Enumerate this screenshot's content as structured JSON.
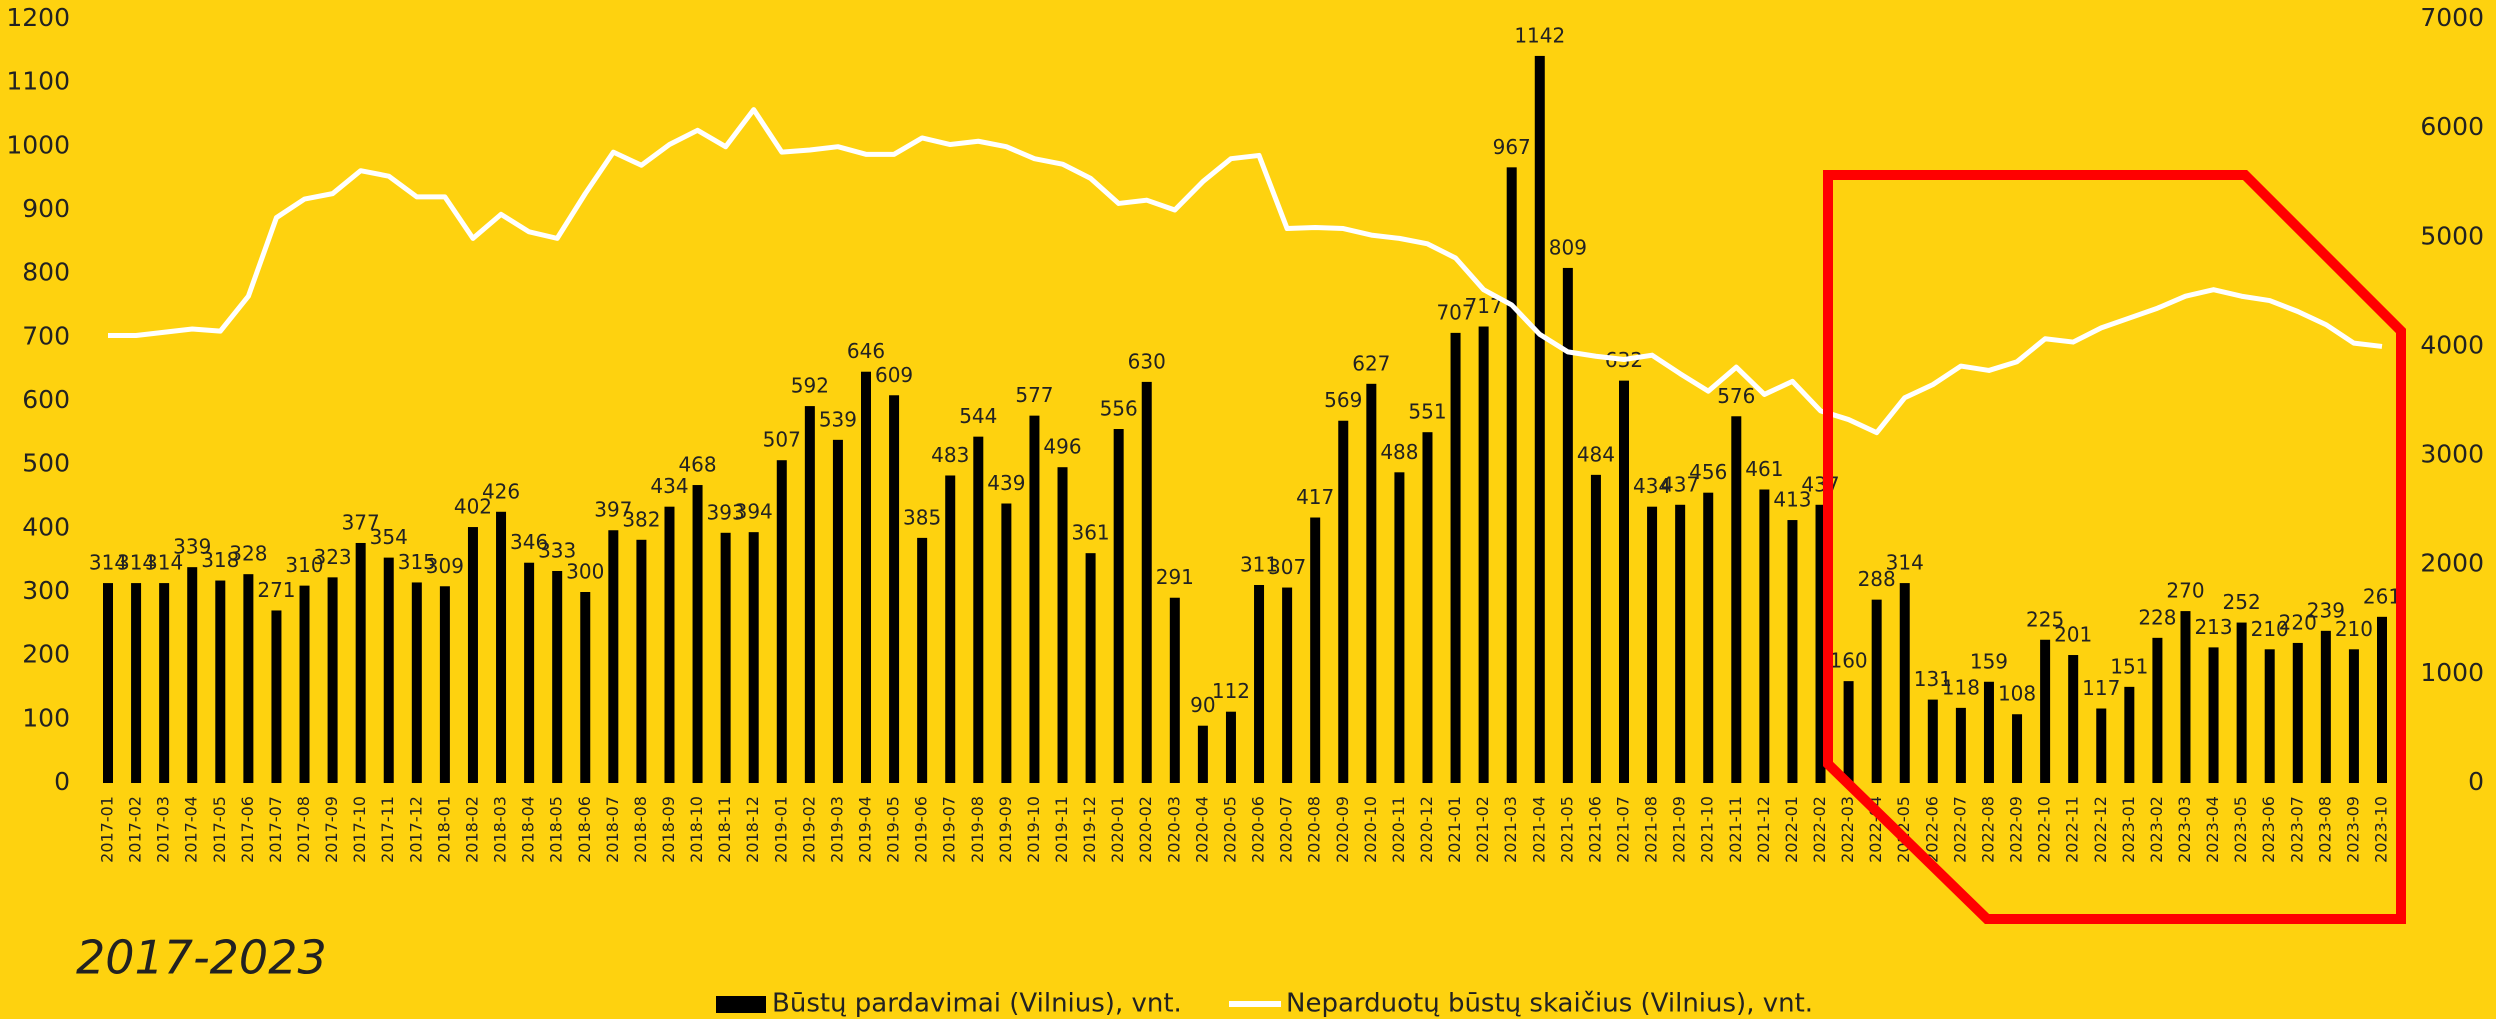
{
  "chart_data": {
    "type": "bar",
    "title": "2017-2023",
    "categories": [
      "2017-01",
      "2017-02",
      "2017-03",
      "2017-04",
      "2017-05",
      "2017-06",
      "2017-07",
      "2017-08",
      "2017-09",
      "2017-10",
      "2017-11",
      "2017-12",
      "2018-01",
      "2018-02",
      "2018-03",
      "2018-04",
      "2018-05",
      "2018-06",
      "2018-07",
      "2018-08",
      "2018-09",
      "2018-10",
      "2018-11",
      "2018-12",
      "2019-01",
      "2019-02",
      "2019-03",
      "2019-04",
      "2019-05",
      "2019-06",
      "2019-07",
      "2019-08",
      "2019-09",
      "2019-10",
      "2019-11",
      "2019-12",
      "2020-01",
      "2020-02",
      "2020-03",
      "2020-04",
      "2020-05",
      "2020-06",
      "2020-07",
      "2020-08",
      "2020-09",
      "2020-10",
      "2020-11",
      "2020-12",
      "2021-01",
      "2021-02",
      "2021-03",
      "2021-04",
      "2021-05",
      "2021-06",
      "2021-07",
      "2021-08",
      "2021-09",
      "2021-10",
      "2021-11",
      "2021-12",
      "2022-01",
      "2022-02",
      "2022-03",
      "2022-04",
      "2022-05",
      "2022-06",
      "2022-07",
      "2022-08",
      "2022-09",
      "2022-10",
      "2022-11",
      "2022-12",
      "2023-01",
      "2023-02",
      "2023-03",
      "2023-04",
      "2023-05",
      "2023-06",
      "2023-07",
      "2023-08",
      "2023-09",
      "2023-10"
    ],
    "series": [
      {
        "name": "Būstų pardavimai (Vilnius), vnt.",
        "type": "bar",
        "color": "#000000",
        "values": [
          314,
          314,
          314,
          339,
          318,
          328,
          271,
          310,
          323,
          377,
          354,
          315,
          309,
          402,
          426,
          346,
          333,
          300,
          397,
          382,
          434,
          468,
          393,
          394,
          507,
          592,
          539,
          646,
          609,
          385,
          483,
          544,
          439,
          577,
          496,
          361,
          556,
          630,
          291,
          90,
          112,
          311,
          307,
          417,
          569,
          627,
          488,
          551,
          707,
          717,
          967,
          1142,
          809,
          484,
          632,
          434,
          437,
          456,
          576,
          461,
          413,
          437,
          160,
          288,
          314,
          131,
          118,
          159,
          108,
          225,
          201,
          117,
          151,
          228,
          270,
          213,
          252,
          210,
          220,
          239,
          210,
          261
        ]
      },
      {
        "name": "Neparduotų būstų skaičius (Vilnius), vnt.",
        "type": "line",
        "axis": "y2",
        "color": "#ffffff",
        "values": [
          4100,
          4100,
          4130,
          4160,
          4140,
          4460,
          5180,
          5350,
          5400,
          5610,
          5560,
          5370,
          5370,
          4990,
          5210,
          5050,
          4990,
          5400,
          5780,
          5660,
          5850,
          5980,
          5830,
          6170,
          5780,
          5800,
          5830,
          5760,
          5760,
          5910,
          5850,
          5880,
          5830,
          5720,
          5670,
          5540,
          5310,
          5340,
          5250,
          5510,
          5720,
          5750,
          5080,
          5090,
          5080,
          5020,
          4990,
          4940,
          4810,
          4520,
          4380,
          4110,
          3950,
          3910,
          3880,
          3920,
          3750,
          3590,
          3810,
          3560,
          3680,
          3410,
          3330,
          3210,
          3530,
          3650,
          3820,
          3780,
          3860,
          4070,
          4040,
          4170,
          4260,
          4350,
          4460,
          4520,
          4460,
          4420,
          4320,
          4200,
          4030,
          4000
        ]
      }
    ],
    "ylim": [
      0,
      1200
    ],
    "yticks": [
      0,
      100,
      200,
      300,
      400,
      500,
      600,
      700,
      800,
      900,
      1000,
      1100,
      1200
    ],
    "y2lim": [
      0,
      7000
    ],
    "y2ticks": [
      0,
      1000,
      2000,
      3000,
      4000,
      5000,
      6000,
      7000
    ],
    "grid": false,
    "legend": "bottom"
  }
}
